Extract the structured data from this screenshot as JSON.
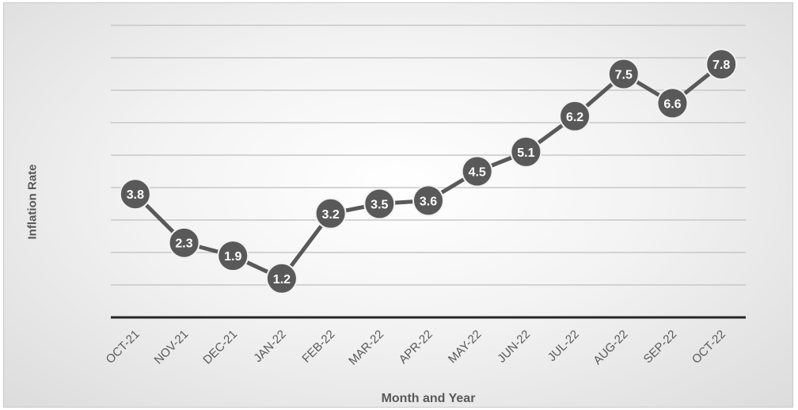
{
  "chart_data": {
    "type": "line",
    "title": "",
    "xlabel": "Month and Year",
    "ylabel": "Inflation Rate",
    "categories": [
      "OCT-21",
      "NOV-21",
      "DEC-21",
      "JAN-22",
      "FEB-22",
      "MAR-22",
      "APR-22",
      "MAY-22",
      "JUN-22",
      "JUL-22",
      "AUG-22",
      "SEP-22",
      "OCT-22"
    ],
    "series": [
      {
        "values": [
          3.8,
          2.3,
          1.9,
          1.2,
          3.2,
          3.5,
          3.6,
          4.5,
          5.1,
          6.2,
          7.5,
          6.6,
          7.8
        ]
      }
    ],
    "data_labels": [
      "3.8",
      "2.3",
      "1.9",
      "1.2",
      "3.2",
      "3.5",
      "3.6",
      "4.5",
      "5.1",
      "6.2",
      "7.5",
      "6.6",
      "7.8"
    ],
    "ylim": [
      0,
      9
    ],
    "grid": true,
    "legend": "none",
    "colors": {
      "line": "#595959",
      "marker": "#595959",
      "label": "#ffffff",
      "grid": "#c8c8c8",
      "axis": "#262626"
    }
  }
}
